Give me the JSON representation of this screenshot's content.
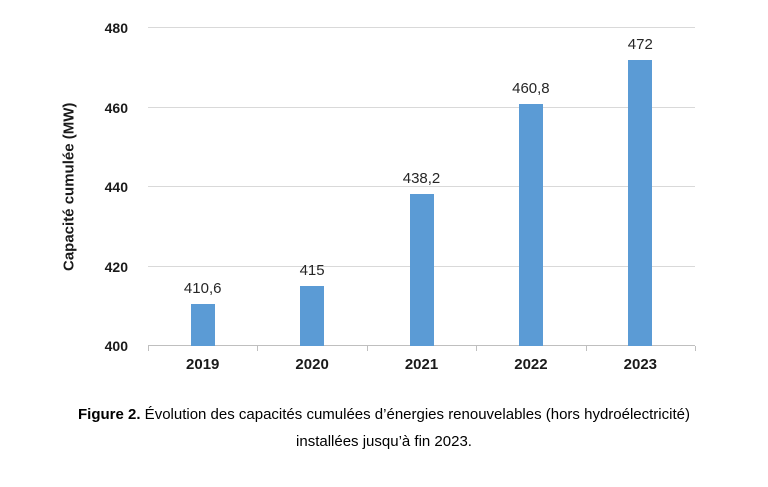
{
  "figure": {
    "caption_prefix": "Figure 2.",
    "caption_text": " Évolution des capacités cumulées d’énergies renouvelables (hors hydroélectricité) installées jusqu’à fin 2023."
  },
  "chart_data": {
    "type": "bar",
    "categories": [
      "2019",
      "2020",
      "2021",
      "2022",
      "2023"
    ],
    "values": [
      410.6,
      415,
      438.2,
      460.8,
      472
    ],
    "value_labels": [
      "410,6",
      "415",
      "438,2",
      "460,8",
      "472"
    ],
    "title": "",
    "xlabel": "",
    "ylabel": "Capacité cumulée (MW)",
    "ylim": [
      400,
      480
    ],
    "yticks": [
      400,
      420,
      440,
      460,
      480
    ],
    "grid": true,
    "legend": false,
    "colors": {
      "bar": "#5b9bd5",
      "gridline": "#d9d9d9",
      "axis_line": "#bfbfbf",
      "text": "#1a1a1a"
    }
  }
}
